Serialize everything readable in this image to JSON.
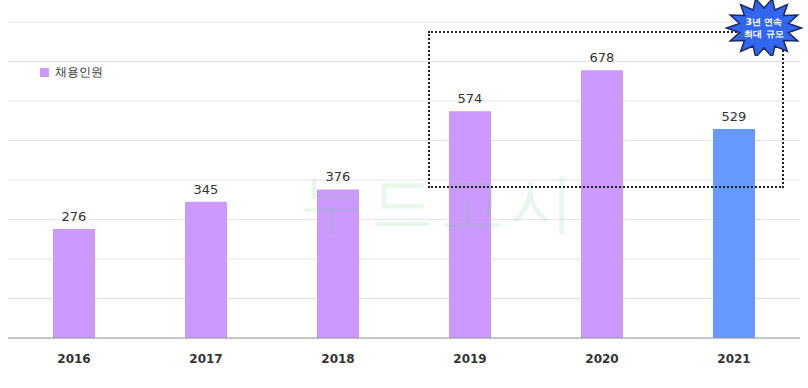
{
  "chart_data": {
    "type": "bar",
    "categories": [
      "2016",
      "2017",
      "2018",
      "2019",
      "2020",
      "2021"
    ],
    "series": [
      {
        "name": "채용인원",
        "color": "#cc99ff",
        "values": [
          276,
          345,
          376,
          574,
          678,
          529
        ]
      }
    ],
    "colors": [
      "#cc99ff",
      "#cc99ff",
      "#cc99ff",
      "#cc99ff",
      "#cc99ff",
      "#6699ff"
    ],
    "ylim": [
      0,
      800
    ],
    "yticks": [
      0,
      100,
      200,
      300,
      400,
      500,
      600,
      700,
      800
    ],
    "grid": true,
    "data_labels": true,
    "tick_labels": "x",
    "annotations": [
      "3년 연속 최대 규모"
    ],
    "watermark": "누드고시"
  }
}
